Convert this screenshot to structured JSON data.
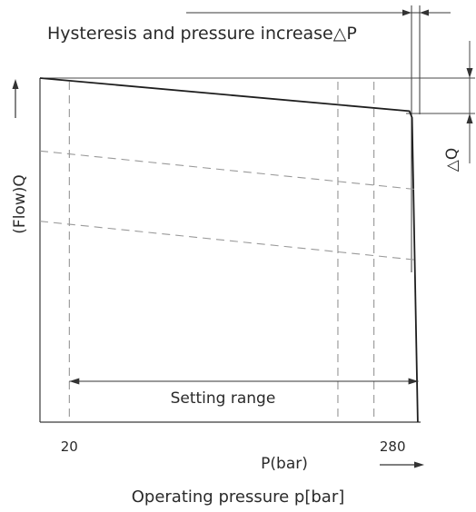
{
  "chart_data": {
    "type": "line",
    "title": "Hysteresis and pressure increase△P",
    "xlabel": "Operating pressure p[bar]",
    "x_unit_label": "P(bar)",
    "ylabel": "(Flow)Q",
    "delta_q_label": "△Q",
    "x_ticks": [
      {
        "value": 20,
        "label": "20"
      },
      {
        "value": 280,
        "label": "280"
      }
    ],
    "xlim": [
      -3.6,
      302.5
    ],
    "ylim": [
      0,
      100
    ],
    "series": [
      {
        "style": "solid",
        "x": [
          -3.6,
          293.5,
          295.6,
          300.2
        ],
        "y": [
          100,
          90.4,
          88.5,
          0
        ]
      },
      {
        "style": "dashed",
        "x": [
          -3.6,
          297.2
        ],
        "y": [
          78.8,
          67.7
        ]
      },
      {
        "style": "dashed",
        "x": [
          -3.6,
          297.2
        ],
        "y": [
          58.4,
          47.2
        ]
      }
    ],
    "vertical_dashed_lines_x": [
      20,
      236,
      265
    ],
    "annotations": [
      {
        "text": "Setting range",
        "x_from": 20,
        "x_to": 300
      }
    ]
  }
}
